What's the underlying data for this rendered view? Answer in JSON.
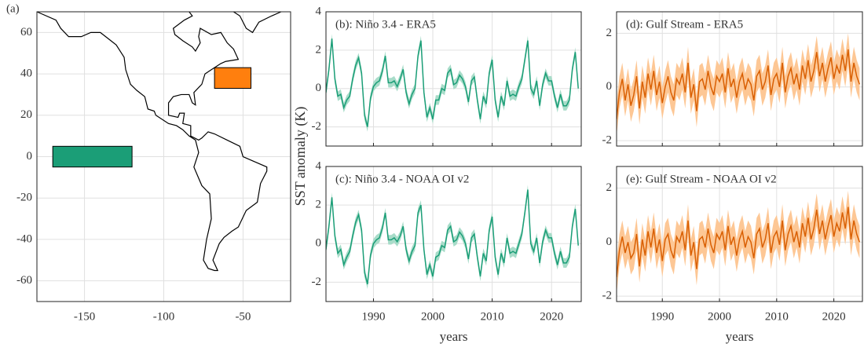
{
  "chart_data": [
    {
      "type": "map",
      "panel_label": "(a)",
      "xlim": [
        -180,
        -20
      ],
      "ylim": [
        -70,
        70
      ],
      "xticks": [
        -150,
        -100,
        -50
      ],
      "yticks": [
        -60,
        -40,
        -20,
        0,
        20,
        40,
        60
      ],
      "grid": true,
      "regions": [
        {
          "lon": [
            -170,
            -120
          ],
          "lat": [
            -5,
            5
          ],
          "color": "#1b9e77"
        },
        {
          "lon": [
            -68,
            -45
          ],
          "lat": [
            33,
            43
          ],
          "color": "#ff7f0e"
        }
      ]
    },
    {
      "type": "line",
      "title": "(b): Niño 3.4 - ERA5",
      "ylabel": "SST anomaly (K)",
      "color": "#1b9e77",
      "band_color": "#a8dcc9",
      "band_halfwidth": 0.25,
      "grid": true,
      "show_xticklabels": false,
      "xlim": [
        1982,
        2025
      ],
      "ylim": [
        -3,
        4
      ],
      "xticks": [
        1990,
        2000,
        2010,
        2020
      ],
      "yticks": [
        -2,
        0,
        2,
        4
      ],
      "x": [
        1982,
        1982.5,
        1983,
        1983.5,
        1984,
        1984.5,
        1985,
        1985.5,
        1986,
        1986.5,
        1987,
        1987.5,
        1988,
        1988.5,
        1989,
        1989.5,
        1990,
        1990.5,
        1991,
        1991.5,
        1992,
        1992.5,
        1993,
        1993.5,
        1994,
        1994.5,
        1995,
        1995.5,
        1996,
        1996.5,
        1997,
        1997.5,
        1998,
        1998.5,
        1999,
        1999.5,
        2000,
        2000.5,
        2001,
        2001.5,
        2002,
        2002.5,
        2003,
        2003.5,
        2004,
        2004.5,
        2005,
        2005.5,
        2006,
        2006.5,
        2007,
        2007.5,
        2008,
        2008.5,
        2009,
        2009.5,
        2010,
        2010.5,
        2011,
        2011.5,
        2012,
        2012.5,
        2013,
        2013.5,
        2014,
        2014.5,
        2015,
        2015.5,
        2016,
        2016.5,
        2017,
        2017.5,
        2018,
        2018.5,
        2019,
        2019.5,
        2020,
        2020.5,
        2021,
        2021.5,
        2022,
        2022.5,
        2023,
        2023.5,
        2024,
        2024.5
      ],
      "values": [
        -0.2,
        1.0,
        2.6,
        0.5,
        -0.4,
        -0.3,
        -1.0,
        -0.6,
        -0.4,
        0.5,
        1.2,
        1.6,
        0.8,
        -1.4,
        -2.0,
        -0.5,
        0.1,
        0.3,
        0.4,
        0.9,
        1.7,
        0.3,
        0.3,
        0.4,
        0.1,
        0.5,
        1.0,
        -0.2,
        -0.8,
        -0.3,
        0.0,
        1.7,
        2.5,
        -0.2,
        -1.5,
        -1.0,
        -1.6,
        -0.6,
        -0.6,
        0.0,
        -0.1,
        0.8,
        1.0,
        0.2,
        0.3,
        0.7,
        0.5,
        0.1,
        -0.7,
        0.4,
        0.6,
        -0.6,
        -1.6,
        -0.4,
        -0.8,
        0.8,
        1.5,
        -0.6,
        -1.5,
        -0.4,
        -0.9,
        0.4,
        -0.4,
        -0.3,
        -0.4,
        0.1,
        0.5,
        1.5,
        2.5,
        0.0,
        -0.3,
        0.4,
        -0.9,
        0.2,
        0.8,
        0.4,
        0.4,
        -0.4,
        -1.0,
        -0.3,
        -0.9,
        -0.9,
        -0.6,
        1.0,
        1.9,
        0.0
      ]
    },
    {
      "type": "line",
      "title": "(c): Niño 3.4 - NOAA OI v2",
      "xlabel": "years",
      "color": "#1b9e77",
      "band_color": "#a8dcc9",
      "band_halfwidth": 0.25,
      "grid": true,
      "show_xticklabels": true,
      "xlim": [
        1982,
        2025
      ],
      "ylim": [
        -3,
        4
      ],
      "xticks": [
        1990,
        2000,
        2010,
        2020
      ],
      "yticks": [
        -2,
        0,
        2,
        4
      ],
      "x": [
        1982,
        1982.5,
        1983,
        1983.5,
        1984,
        1984.5,
        1985,
        1985.5,
        1986,
        1986.5,
        1987,
        1987.5,
        1988,
        1988.5,
        1989,
        1989.5,
        1990,
        1990.5,
        1991,
        1991.5,
        1992,
        1992.5,
        1993,
        1993.5,
        1994,
        1994.5,
        1995,
        1995.5,
        1996,
        1996.5,
        1997,
        1997.5,
        1998,
        1998.5,
        1999,
        1999.5,
        2000,
        2000.5,
        2001,
        2001.5,
        2002,
        2002.5,
        2003,
        2003.5,
        2004,
        2004.5,
        2005,
        2005.5,
        2006,
        2006.5,
        2007,
        2007.5,
        2008,
        2008.5,
        2009,
        2009.5,
        2010,
        2010.5,
        2011,
        2011.5,
        2012,
        2012.5,
        2013,
        2013.5,
        2014,
        2014.5,
        2015,
        2015.5,
        2016,
        2016.5,
        2017,
        2017.5,
        2018,
        2018.5,
        2019,
        2019.5,
        2020,
        2020.5,
        2021,
        2021.5,
        2022,
        2022.5,
        2023,
        2023.5,
        2024,
        2024.5
      ],
      "values": [
        -0.3,
        0.9,
        2.4,
        0.4,
        -0.5,
        -0.3,
        -1.1,
        -0.7,
        -0.4,
        0.4,
        1.1,
        1.5,
        0.7,
        -1.5,
        -2.1,
        -0.6,
        0.0,
        0.2,
        0.3,
        0.8,
        1.6,
        0.2,
        0.2,
        0.3,
        0.1,
        0.4,
        0.9,
        -0.3,
        -0.9,
        -0.4,
        -0.1,
        1.6,
        2.0,
        -0.3,
        -1.6,
        -1.1,
        -1.7,
        -0.7,
        -0.6,
        -0.1,
        -0.2,
        0.7,
        0.9,
        0.1,
        0.2,
        0.6,
        0.4,
        0.0,
        -0.8,
        0.3,
        0.5,
        -0.7,
        -1.7,
        -0.5,
        -0.9,
        0.7,
        1.4,
        -0.7,
        -1.6,
        -0.5,
        -1.0,
        0.3,
        -0.5,
        -0.4,
        -0.5,
        0.0,
        0.5,
        1.6,
        2.8,
        0.0,
        -0.4,
        0.3,
        -1.0,
        0.1,
        0.7,
        0.3,
        0.3,
        -0.5,
        -1.1,
        -0.4,
        -1.0,
        -1.0,
        -0.7,
        0.9,
        1.8,
        -0.1
      ]
    },
    {
      "type": "line",
      "title": "(d): Gulf Stream - ERA5",
      "color": "#d95f02",
      "band_color": "#fdc795",
      "band_halfwidth": 0.6,
      "grid": true,
      "show_xticklabels": false,
      "xlim": [
        1982,
        2025
      ],
      "ylim": [
        -2.2,
        2.8
      ],
      "xticks": [
        1990,
        2000,
        2010,
        2020
      ],
      "yticks": [
        -2,
        0,
        2
      ],
      "x": [
        1982,
        1982.5,
        1983,
        1983.5,
        1984,
        1984.5,
        1985,
        1985.5,
        1986,
        1986.5,
        1987,
        1987.5,
        1988,
        1988.5,
        1989,
        1989.5,
        1990,
        1990.5,
        1991,
        1991.5,
        1992,
        1992.5,
        1993,
        1993.5,
        1994,
        1994.5,
        1995,
        1995.5,
        1996,
        1996.5,
        1997,
        1997.5,
        1998,
        1998.5,
        1999,
        1999.5,
        2000,
        2000.5,
        2001,
        2001.5,
        2002,
        2002.5,
        2003,
        2003.5,
        2004,
        2004.5,
        2005,
        2005.5,
        2006,
        2006.5,
        2007,
        2007.5,
        2008,
        2008.5,
        2009,
        2009.5,
        2010,
        2010.5,
        2011,
        2011.5,
        2012,
        2012.5,
        2013,
        2013.5,
        2014,
        2014.5,
        2015,
        2015.5,
        2016,
        2016.5,
        2017,
        2017.5,
        2018,
        2018.5,
        2019,
        2019.5,
        2020,
        2020.5,
        2021,
        2021.5,
        2022,
        2022.5,
        2023,
        2023.5,
        2024,
        2024.5
      ],
      "values": [
        -1.2,
        -0.2,
        0.3,
        -0.5,
        0.1,
        -0.7,
        -0.3,
        0.4,
        -0.8,
        0.2,
        -0.4,
        0.5,
        -0.1,
        0.6,
        -0.3,
        0.2,
        -0.6,
        0.0,
        0.4,
        -0.2,
        -0.5,
        0.3,
        0.1,
        0.5,
        -0.2,
        0.9,
        -0.4,
        0.1,
        -0.9,
        0.2,
        0.3,
        -0.1,
        0.6,
        0.0,
        -0.3,
        0.4,
        0.2,
        0.5,
        -0.2,
        0.7,
        0.0,
        0.3,
        -0.4,
        0.2,
        0.5,
        -0.1,
        0.3,
        0.1,
        -0.5,
        0.4,
        0.6,
        -0.1,
        0.2,
        0.8,
        -0.3,
        0.3,
        0.5,
        0.0,
        0.9,
        -0.2,
        0.4,
        0.7,
        0.1,
        0.5,
        -0.1,
        0.8,
        0.3,
        1.0,
        0.2,
        0.6,
        1.3,
        0.4,
        0.9,
        0.2,
        0.7,
        1.1,
        0.3,
        0.8,
        0.5,
        1.2,
        0.6,
        1.4,
        0.2,
        0.9,
        0.4,
        0.1
      ]
    },
    {
      "type": "line",
      "title": "(e): Gulf Stream - NOAA OI v2",
      "xlabel": "years",
      "color": "#d95f02",
      "band_color": "#fdc795",
      "band_halfwidth": 0.6,
      "grid": true,
      "show_xticklabels": true,
      "xlim": [
        1982,
        2025
      ],
      "ylim": [
        -2.2,
        2.8
      ],
      "xticks": [
        1990,
        2000,
        2010,
        2020
      ],
      "yticks": [
        -2,
        0,
        2
      ],
      "x": [
        1982,
        1982.5,
        1983,
        1983.5,
        1984,
        1984.5,
        1985,
        1985.5,
        1986,
        1986.5,
        1987,
        1987.5,
        1988,
        1988.5,
        1989,
        1989.5,
        1990,
        1990.5,
        1991,
        1991.5,
        1992,
        1992.5,
        1993,
        1993.5,
        1994,
        1994.5,
        1995,
        1995.5,
        1996,
        1996.5,
        1997,
        1997.5,
        1998,
        1998.5,
        1999,
        1999.5,
        2000,
        2000.5,
        2001,
        2001.5,
        2002,
        2002.5,
        2003,
        2003.5,
        2004,
        2004.5,
        2005,
        2005.5,
        2006,
        2006.5,
        2007,
        2007.5,
        2008,
        2008.5,
        2009,
        2009.5,
        2010,
        2010.5,
        2011,
        2011.5,
        2012,
        2012.5,
        2013,
        2013.5,
        2014,
        2014.5,
        2015,
        2015.5,
        2016,
        2016.5,
        2017,
        2017.5,
        2018,
        2018.5,
        2019,
        2019.5,
        2020,
        2020.5,
        2021,
        2021.5,
        2022,
        2022.5,
        2023,
        2023.5,
        2024,
        2024.5
      ],
      "values": [
        -1.3,
        -0.3,
        0.2,
        -0.4,
        0.0,
        -0.6,
        -0.4,
        0.3,
        -0.9,
        0.1,
        -0.5,
        0.4,
        -0.2,
        0.5,
        -0.4,
        0.1,
        -0.7,
        0.1,
        0.3,
        -0.3,
        -0.6,
        0.2,
        0.0,
        0.4,
        -0.3,
        0.8,
        -0.5,
        0.0,
        -1.0,
        0.1,
        0.2,
        -0.2,
        0.5,
        -0.1,
        -0.4,
        0.3,
        0.1,
        0.4,
        -0.3,
        0.6,
        -0.1,
        0.2,
        -0.5,
        0.1,
        0.4,
        -0.2,
        0.2,
        0.0,
        -0.6,
        0.3,
        0.5,
        -0.2,
        0.1,
        0.7,
        -0.4,
        0.2,
        0.4,
        -0.1,
        0.8,
        -0.3,
        0.3,
        0.6,
        0.0,
        0.4,
        -0.2,
        0.7,
        0.2,
        0.9,
        0.1,
        0.5,
        1.2,
        0.3,
        0.8,
        0.1,
        0.6,
        1.0,
        0.2,
        0.7,
        0.4,
        1.1,
        0.5,
        1.3,
        0.1,
        0.8,
        0.3,
        0.0
      ]
    }
  ]
}
